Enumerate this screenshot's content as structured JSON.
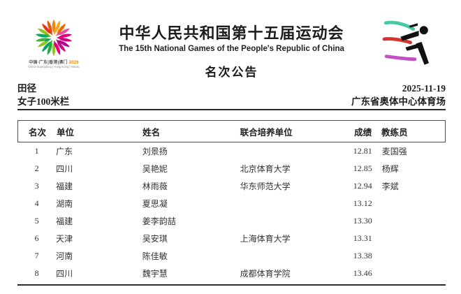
{
  "header": {
    "title_cn": "中华人民共和国第十五届运动会",
    "title_en": "The 15th National Games of the People's Republic of China",
    "notice_title": "名次公告",
    "emblem": {
      "line1_prefix": "中国·广东|香港|澳门 ",
      "line1_year": "2025",
      "line2": "China-Guangdong | Hong Kong | Macao"
    }
  },
  "meta": {
    "sport": "田径",
    "date": "2025-11-19",
    "event": "女子100米栏",
    "venue": "广东省奥体中心体育场"
  },
  "table": {
    "columns": [
      "名次",
      "单位",
      "姓名",
      "联合培养单位",
      "成绩",
      "教练员"
    ],
    "rows": [
      {
        "rank": "1",
        "unit": "广东",
        "name": "刘景扬",
        "joint": "",
        "result": "12.81",
        "coach": "麦国强"
      },
      {
        "rank": "2",
        "unit": "四川",
        "name": "吴艳妮",
        "joint": "北京体育大学",
        "result": "12.85",
        "coach": "杨辉"
      },
      {
        "rank": "3",
        "unit": "福建",
        "name": "林雨薇",
        "joint": "华东师范大学",
        "result": "12.94",
        "coach": "李斌"
      },
      {
        "rank": "4",
        "unit": "湖南",
        "name": "夏思凝",
        "joint": "",
        "result": "13.12",
        "coach": ""
      },
      {
        "rank": "5",
        "unit": "福建",
        "name": "姜李韵喆",
        "joint": "",
        "result": "13.30",
        "coach": ""
      },
      {
        "rank": "6",
        "unit": "天津",
        "name": "吴安琪",
        "joint": "上海体育大学",
        "result": "13.31",
        "coach": ""
      },
      {
        "rank": "7",
        "unit": "河南",
        "name": "陈佳敏",
        "joint": "",
        "result": "13.38",
        "coach": ""
      },
      {
        "rank": "8",
        "unit": "四川",
        "name": "魏宇慧",
        "joint": "成都体育学院",
        "result": "13.46",
        "coach": ""
      }
    ]
  },
  "icons": {
    "left": "national-games-emblem",
    "right": "athletics-pictogram-icon"
  },
  "colors": {
    "text": "#1e1e1e",
    "rule": "#2b2b2b",
    "emblem_orange": "#f08300",
    "emblem_red": "#e8380d",
    "emblem_magenta": "#e4007f",
    "emblem_green": "#8fc31f",
    "pictogram_teal": "#46c8a5",
    "pictogram_red": "#d2342e",
    "pictogram_purple": "#c24fc6",
    "pictogram_black": "#111111"
  }
}
